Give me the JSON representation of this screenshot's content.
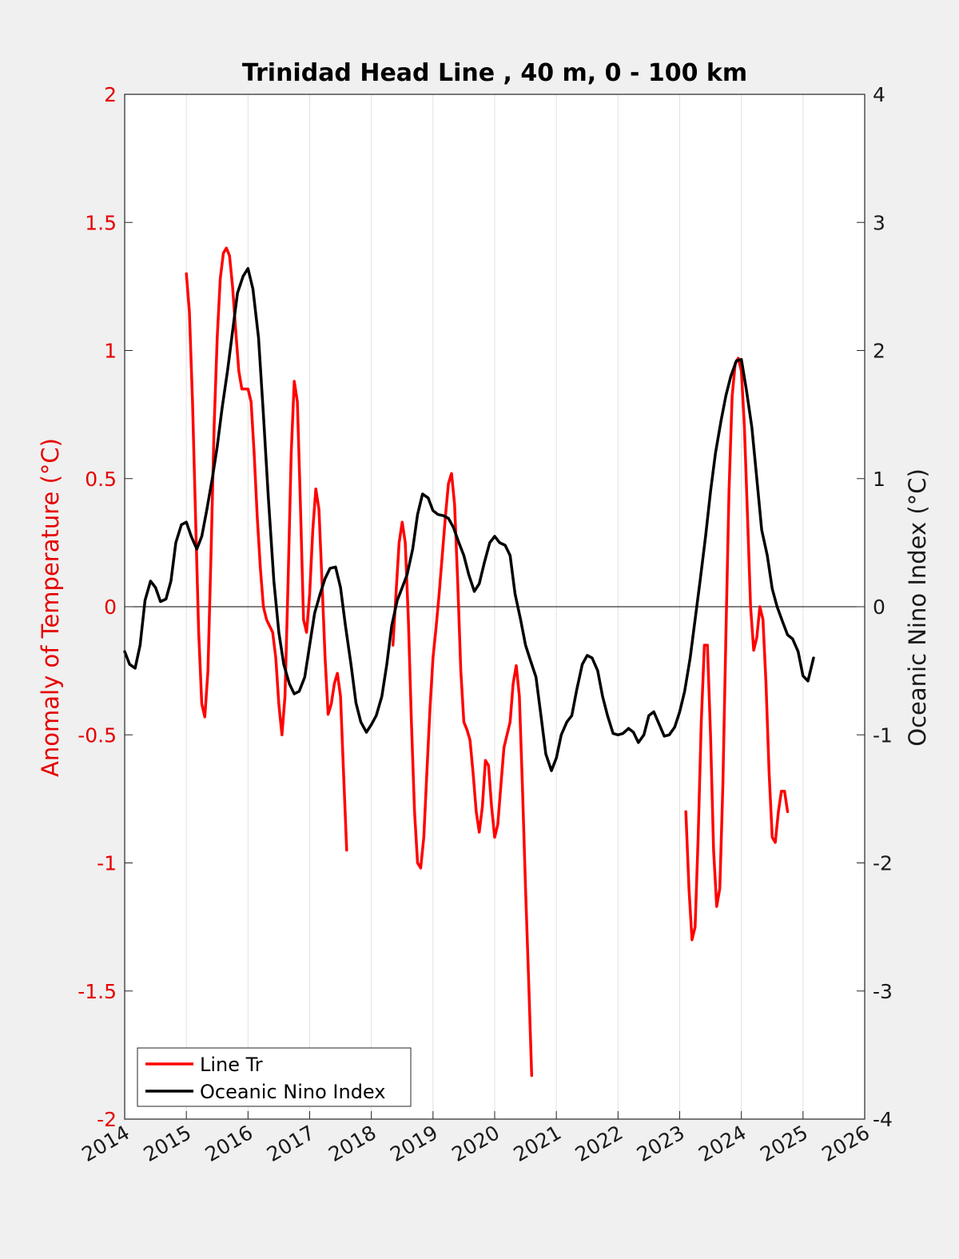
{
  "chart_data": {
    "type": "line",
    "title": "Trinidad Head Line , 40 m, 0 - 100 km",
    "xlabel": "",
    "ylabel": "Anomaly of Temperature (°C)",
    "y2label": "Oceanic Nino Index (°C)",
    "xlim": [
      2014,
      2026
    ],
    "ylim": [
      -2,
      2
    ],
    "y2lim": [
      -4,
      4
    ],
    "x_ticks": [
      "2014",
      "2015",
      "2016",
      "2017",
      "2018",
      "2019",
      "2020",
      "2021",
      "2022",
      "2023",
      "2024",
      "2025",
      "2026"
    ],
    "y_ticks": [
      "-2",
      "-1.5",
      "-1",
      "-0.5",
      "0",
      "0.5",
      "1",
      "1.5",
      "2"
    ],
    "y2_ticks": [
      "-4",
      "-3",
      "-2",
      "-1",
      "0",
      "1",
      "2",
      "3",
      "4"
    ],
    "grid": "vertical",
    "legend_position": "bottom-left",
    "colors": {
      "line_tr": "#ff0000",
      "oni": "#000000",
      "left_axis": "#e60000",
      "right_axis": "#1a1a1a"
    },
    "series": [
      {
        "name": "Line Tr",
        "axis": "left",
        "segments": [
          [
            [
              2015.0,
              1.3
            ],
            [
              2015.05,
              1.15
            ],
            [
              2015.1,
              0.8
            ],
            [
              2015.15,
              0.35
            ],
            [
              2015.2,
              -0.1
            ],
            [
              2015.25,
              -0.38
            ],
            [
              2015.3,
              -0.43
            ],
            [
              2015.35,
              -0.25
            ],
            [
              2015.4,
              0.2
            ],
            [
              2015.45,
              0.7
            ],
            [
              2015.5,
              1.05
            ],
            [
              2015.55,
              1.28
            ],
            [
              2015.6,
              1.38
            ],
            [
              2015.65,
              1.4
            ],
            [
              2015.7,
              1.37
            ],
            [
              2015.75,
              1.25
            ],
            [
              2015.8,
              1.08
            ],
            [
              2015.85,
              0.92
            ],
            [
              2015.9,
              0.85
            ],
            [
              2015.95,
              0.85
            ],
            [
              2016.0,
              0.85
            ],
            [
              2016.05,
              0.8
            ],
            [
              2016.1,
              0.6
            ],
            [
              2016.15,
              0.35
            ],
            [
              2016.2,
              0.15
            ],
            [
              2016.25,
              0.0
            ],
            [
              2016.3,
              -0.05
            ],
            [
              2016.4,
              -0.1
            ],
            [
              2016.45,
              -0.2
            ],
            [
              2016.5,
              -0.38
            ],
            [
              2016.55,
              -0.5
            ],
            [
              2016.6,
              -0.35
            ],
            [
              2016.65,
              0.1
            ],
            [
              2016.7,
              0.6
            ],
            [
              2016.75,
              0.88
            ],
            [
              2016.8,
              0.8
            ],
            [
              2016.85,
              0.4
            ],
            [
              2016.9,
              -0.05
            ],
            [
              2016.95,
              -0.1
            ],
            [
              2017.0,
              0.05
            ],
            [
              2017.05,
              0.3
            ],
            [
              2017.1,
              0.46
            ],
            [
              2017.15,
              0.38
            ],
            [
              2017.2,
              0.1
            ],
            [
              2017.25,
              -0.2
            ],
            [
              2017.3,
              -0.42
            ],
            [
              2017.35,
              -0.38
            ],
            [
              2017.4,
              -0.3
            ],
            [
              2017.45,
              -0.26
            ],
            [
              2017.5,
              -0.35
            ],
            [
              2017.55,
              -0.65
            ],
            [
              2017.6,
              -0.95
            ]
          ],
          [
            [
              2018.35,
              -0.15
            ],
            [
              2018.4,
              0.05
            ],
            [
              2018.45,
              0.25
            ],
            [
              2018.5,
              0.33
            ],
            [
              2018.55,
              0.25
            ],
            [
              2018.6,
              -0.05
            ],
            [
              2018.65,
              -0.45
            ],
            [
              2018.7,
              -0.8
            ],
            [
              2018.75,
              -1.0
            ],
            [
              2018.8,
              -1.02
            ],
            [
              2018.85,
              -0.9
            ],
            [
              2018.9,
              -0.65
            ],
            [
              2018.95,
              -0.4
            ],
            [
              2019.0,
              -0.2
            ],
            [
              2019.05,
              -0.08
            ],
            [
              2019.1,
              0.05
            ],
            [
              2019.15,
              0.2
            ],
            [
              2019.2,
              0.35
            ],
            [
              2019.25,
              0.48
            ],
            [
              2019.3,
              0.52
            ],
            [
              2019.35,
              0.4
            ],
            [
              2019.4,
              0.1
            ],
            [
              2019.45,
              -0.25
            ],
            [
              2019.5,
              -0.45
            ],
            [
              2019.55,
              -0.48
            ],
            [
              2019.6,
              -0.52
            ],
            [
              2019.65,
              -0.65
            ],
            [
              2019.7,
              -0.8
            ],
            [
              2019.75,
              -0.88
            ],
            [
              2019.8,
              -0.78
            ],
            [
              2019.85,
              -0.6
            ],
            [
              2019.9,
              -0.62
            ],
            [
              2019.95,
              -0.78
            ],
            [
              2020.0,
              -0.9
            ],
            [
              2020.05,
              -0.85
            ],
            [
              2020.1,
              -0.7
            ],
            [
              2020.15,
              -0.55
            ],
            [
              2020.2,
              -0.5
            ],
            [
              2020.25,
              -0.45
            ],
            [
              2020.3,
              -0.3
            ],
            [
              2020.35,
              -0.23
            ],
            [
              2020.4,
              -0.35
            ],
            [
              2020.45,
              -0.7
            ],
            [
              2020.5,
              -1.1
            ],
            [
              2020.55,
              -1.45
            ],
            [
              2020.6,
              -1.83
            ]
          ],
          [
            [
              2023.1,
              -0.8
            ],
            [
              2023.15,
              -1.1
            ],
            [
              2023.2,
              -1.3
            ],
            [
              2023.25,
              -1.25
            ],
            [
              2023.3,
              -0.9
            ],
            [
              2023.35,
              -0.45
            ],
            [
              2023.4,
              -0.15
            ],
            [
              2023.45,
              -0.15
            ],
            [
              2023.5,
              -0.5
            ],
            [
              2023.55,
              -0.95
            ],
            [
              2023.6,
              -1.17
            ],
            [
              2023.65,
              -1.1
            ],
            [
              2023.7,
              -0.7
            ],
            [
              2023.75,
              -0.1
            ],
            [
              2023.8,
              0.45
            ],
            [
              2023.85,
              0.82
            ],
            [
              2023.9,
              0.95
            ],
            [
              2023.95,
              0.97
            ],
            [
              2024.0,
              0.92
            ],
            [
              2024.05,
              0.7
            ],
            [
              2024.1,
              0.35
            ],
            [
              2024.15,
              0.0
            ],
            [
              2024.2,
              -0.17
            ],
            [
              2024.25,
              -0.12
            ],
            [
              2024.3,
              0.0
            ],
            [
              2024.35,
              -0.05
            ],
            [
              2024.4,
              -0.3
            ],
            [
              2024.45,
              -0.65
            ],
            [
              2024.5,
              -0.9
            ],
            [
              2024.55,
              -0.92
            ],
            [
              2024.6,
              -0.8
            ],
            [
              2024.65,
              -0.72
            ],
            [
              2024.7,
              -0.72
            ],
            [
              2024.75,
              -0.8
            ]
          ]
        ]
      },
      {
        "name": "Oceanic Nino Index",
        "axis": "right",
        "points": [
          [
            2014.0,
            -0.35
          ],
          [
            2014.08,
            -0.45
          ],
          [
            2014.17,
            -0.48
          ],
          [
            2014.25,
            -0.3
          ],
          [
            2014.33,
            0.05
          ],
          [
            2014.42,
            0.2
          ],
          [
            2014.5,
            0.15
          ],
          [
            2014.58,
            0.04
          ],
          [
            2014.67,
            0.06
          ],
          [
            2014.75,
            0.2
          ],
          [
            2014.83,
            0.5
          ],
          [
            2014.92,
            0.64
          ],
          [
            2015.0,
            0.66
          ],
          [
            2015.08,
            0.55
          ],
          [
            2015.17,
            0.45
          ],
          [
            2015.25,
            0.55
          ],
          [
            2015.33,
            0.75
          ],
          [
            2015.42,
            1.0
          ],
          [
            2015.5,
            1.25
          ],
          [
            2015.58,
            1.55
          ],
          [
            2015.67,
            1.85
          ],
          [
            2015.75,
            2.15
          ],
          [
            2015.83,
            2.45
          ],
          [
            2015.92,
            2.58
          ],
          [
            2016.0,
            2.64
          ],
          [
            2016.08,
            2.48
          ],
          [
            2016.17,
            2.1
          ],
          [
            2016.25,
            1.5
          ],
          [
            2016.33,
            0.85
          ],
          [
            2016.42,
            0.2
          ],
          [
            2016.5,
            -0.2
          ],
          [
            2016.58,
            -0.45
          ],
          [
            2016.67,
            -0.6
          ],
          [
            2016.75,
            -0.68
          ],
          [
            2016.83,
            -0.66
          ],
          [
            2016.92,
            -0.55
          ],
          [
            2017.0,
            -0.3
          ],
          [
            2017.08,
            -0.05
          ],
          [
            2017.17,
            0.1
          ],
          [
            2017.25,
            0.22
          ],
          [
            2017.33,
            0.3
          ],
          [
            2017.42,
            0.31
          ],
          [
            2017.5,
            0.15
          ],
          [
            2017.58,
            -0.15
          ],
          [
            2017.67,
            -0.45
          ],
          [
            2017.75,
            -0.75
          ],
          [
            2017.83,
            -0.9
          ],
          [
            2017.92,
            -0.98
          ],
          [
            2018.0,
            -0.92
          ],
          [
            2018.08,
            -0.85
          ],
          [
            2018.17,
            -0.7
          ],
          [
            2018.25,
            -0.45
          ],
          [
            2018.33,
            -0.15
          ],
          [
            2018.42,
            0.05
          ],
          [
            2018.5,
            0.15
          ],
          [
            2018.58,
            0.25
          ],
          [
            2018.67,
            0.45
          ],
          [
            2018.75,
            0.72
          ],
          [
            2018.83,
            0.88
          ],
          [
            2018.92,
            0.85
          ],
          [
            2019.0,
            0.75
          ],
          [
            2019.08,
            0.72
          ],
          [
            2019.17,
            0.71
          ],
          [
            2019.25,
            0.69
          ],
          [
            2019.33,
            0.62
          ],
          [
            2019.42,
            0.5
          ],
          [
            2019.5,
            0.4
          ],
          [
            2019.58,
            0.25
          ],
          [
            2019.67,
            0.12
          ],
          [
            2019.75,
            0.18
          ],
          [
            2019.83,
            0.34
          ],
          [
            2019.92,
            0.5
          ],
          [
            2020.0,
            0.55
          ],
          [
            2020.08,
            0.5
          ],
          [
            2020.17,
            0.48
          ],
          [
            2020.25,
            0.4
          ],
          [
            2020.33,
            0.1
          ],
          [
            2020.42,
            -0.1
          ],
          [
            2020.5,
            -0.3
          ],
          [
            2020.58,
            -0.42
          ],
          [
            2020.67,
            -0.55
          ],
          [
            2020.75,
            -0.85
          ],
          [
            2020.83,
            -1.15
          ],
          [
            2020.92,
            -1.28
          ],
          [
            2021.0,
            -1.18
          ],
          [
            2021.08,
            -1.0
          ],
          [
            2021.17,
            -0.9
          ],
          [
            2021.25,
            -0.85
          ],
          [
            2021.33,
            -0.65
          ],
          [
            2021.42,
            -0.45
          ],
          [
            2021.5,
            -0.38
          ],
          [
            2021.58,
            -0.4
          ],
          [
            2021.67,
            -0.5
          ],
          [
            2021.75,
            -0.7
          ],
          [
            2021.83,
            -0.85
          ],
          [
            2021.92,
            -0.99
          ],
          [
            2022.0,
            -1.0
          ],
          [
            2022.08,
            -0.99
          ],
          [
            2022.17,
            -0.95
          ],
          [
            2022.25,
            -0.98
          ],
          [
            2022.33,
            -1.06
          ],
          [
            2022.42,
            -1.0
          ],
          [
            2022.5,
            -0.85
          ],
          [
            2022.58,
            -0.82
          ],
          [
            2022.67,
            -0.92
          ],
          [
            2022.75,
            -1.01
          ],
          [
            2022.83,
            -1.0
          ],
          [
            2022.92,
            -0.94
          ],
          [
            2023.0,
            -0.82
          ],
          [
            2023.08,
            -0.66
          ],
          [
            2023.17,
            -0.4
          ],
          [
            2023.25,
            -0.1
          ],
          [
            2023.33,
            0.2
          ],
          [
            2023.42,
            0.55
          ],
          [
            2023.5,
            0.9
          ],
          [
            2023.58,
            1.2
          ],
          [
            2023.67,
            1.45
          ],
          [
            2023.75,
            1.65
          ],
          [
            2023.83,
            1.8
          ],
          [
            2023.92,
            1.92
          ],
          [
            2024.0,
            1.93
          ],
          [
            2024.08,
            1.7
          ],
          [
            2024.17,
            1.4
          ],
          [
            2024.25,
            1.0
          ],
          [
            2024.33,
            0.6
          ],
          [
            2024.42,
            0.4
          ],
          [
            2024.5,
            0.14
          ],
          [
            2024.58,
            0.0
          ],
          [
            2024.67,
            -0.12
          ],
          [
            2024.75,
            -0.22
          ],
          [
            2024.83,
            -0.25
          ],
          [
            2024.92,
            -0.35
          ],
          [
            2025.0,
            -0.54
          ],
          [
            2025.08,
            -0.58
          ],
          [
            2025.17,
            -0.4
          ]
        ]
      }
    ]
  }
}
